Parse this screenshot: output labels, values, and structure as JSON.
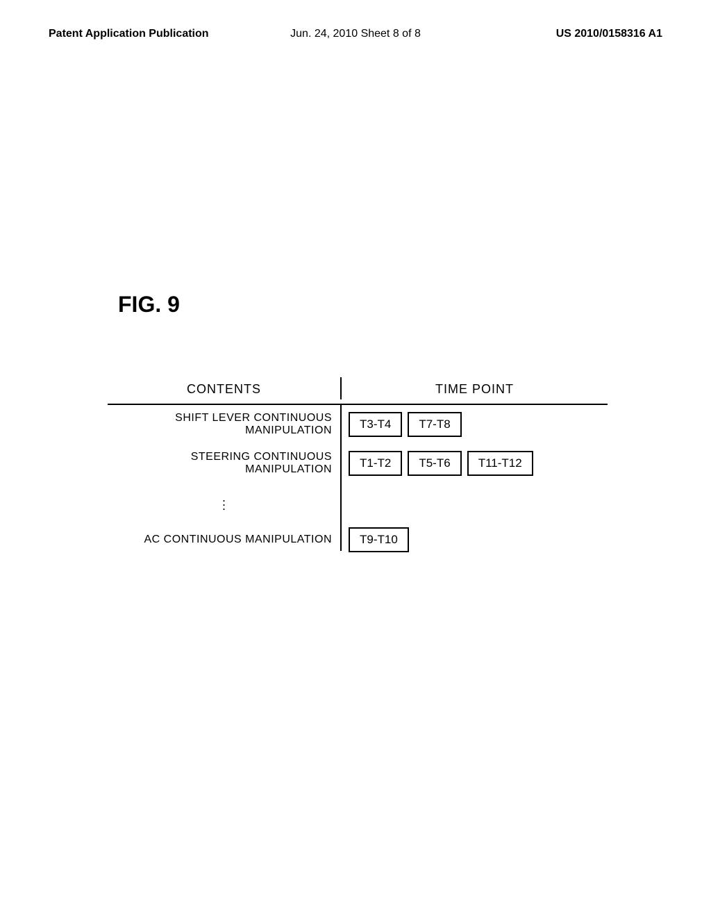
{
  "header": {
    "left": "Patent Application Publication",
    "center": "Jun. 24, 2010  Sheet 8 of 8",
    "right": "US 2010/0158316 A1"
  },
  "figure": {
    "label": "FIG. 9"
  },
  "table": {
    "headers": {
      "contents": "CONTENTS",
      "time_point": "TIME POINT"
    },
    "rows": [
      {
        "label": "SHIFT LEVER CONTINUOUS MANIPULATION",
        "times": [
          "T3-T4",
          "T7-T8"
        ]
      },
      {
        "label": "STEERING CONTINUOUS MANIPULATION",
        "times": [
          "T1-T2",
          "T5-T6",
          "T11-T12"
        ]
      },
      {
        "label": "AC CONTINUOUS MANIPULATION",
        "times": [
          "T9-T10"
        ]
      }
    ]
  }
}
